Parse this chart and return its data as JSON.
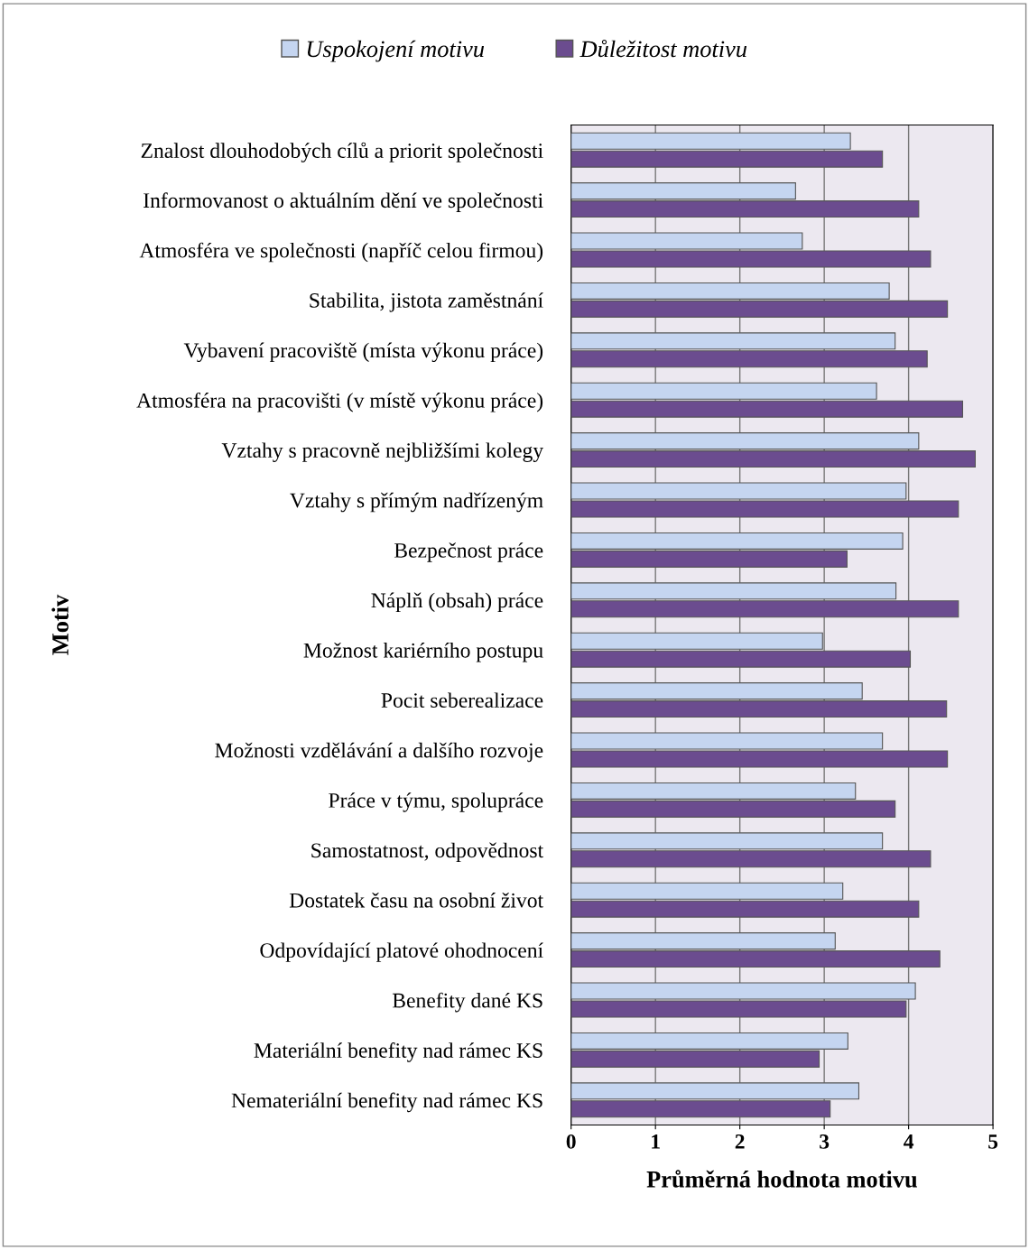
{
  "chart_data": {
    "type": "bar",
    "orientation": "horizontal",
    "xlabel": "Průměrná hodnota motivu",
    "ylabel": "Motiv",
    "categories": [
      "Znalost dlouhodobých cílů a priorit společnosti",
      "Informovanost o aktuálním dění ve společnosti",
      "Atmosféra ve společnosti (napříč celou firmou)",
      "Stabilita, jistota zaměstnání",
      "Vybavení pracoviště (místa výkonu práce)",
      "Atmosféra na pracovišti (v místě výkonu práce)",
      "Vztahy s pracovně nejbližšími kolegy",
      "Vztahy s přímým nadřízeným",
      "Bezpečnost práce",
      "Náplň (obsah) práce",
      "Možnost kariérního postupu",
      "Pocit seberealizace",
      "Možnosti vzdělávání a dalšího rozvoje",
      "Práce v týmu, spolupráce",
      "Samostatnost, odpovědnost",
      "Dostatek času na osobní život",
      "Odpovídající platové ohodnocení",
      "Benefity dané KS",
      "Materiální benefity nad rámec KS",
      "Nemateriální benefity nad rámec KS"
    ],
    "series": [
      {
        "name": "Uspokojení motivu",
        "color": "#c5d5f0",
        "values": [
          3.31,
          2.66,
          2.74,
          3.77,
          3.84,
          3.62,
          4.12,
          3.97,
          3.93,
          3.85,
          2.98,
          3.45,
          3.69,
          3.37,
          3.69,
          3.22,
          3.13,
          4.08,
          3.28,
          3.41
        ]
      },
      {
        "name": "Důležitost motivu",
        "color": "#6b4c8f",
        "values": [
          3.69,
          4.12,
          4.26,
          4.46,
          4.22,
          4.64,
          4.79,
          4.59,
          3.27,
          4.59,
          4.02,
          4.45,
          4.46,
          3.84,
          4.26,
          4.12,
          4.37,
          3.97,
          2.94,
          3.07
        ]
      }
    ],
    "xlim": [
      0,
      5
    ],
    "xticks": [
      0,
      1,
      2,
      3,
      4,
      5
    ],
    "grid": "x",
    "legend": "top"
  }
}
